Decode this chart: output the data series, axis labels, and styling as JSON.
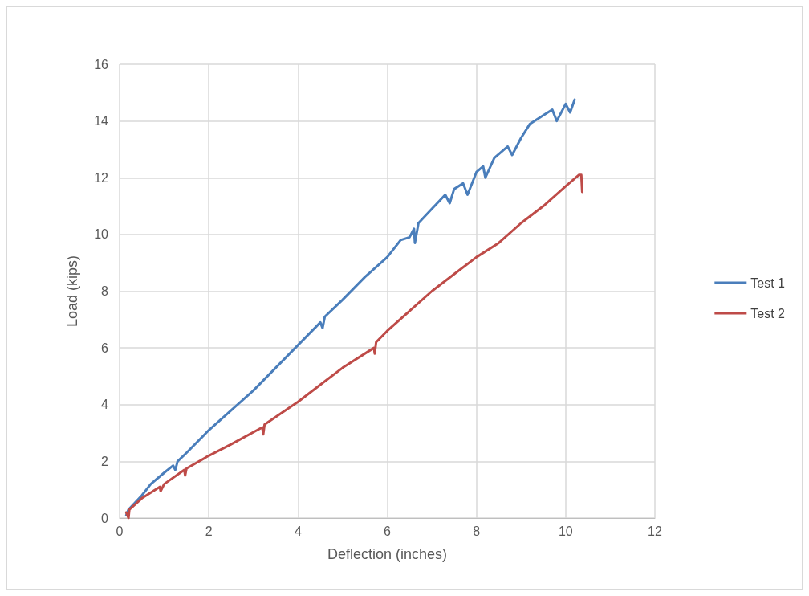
{
  "chart_data": {
    "type": "line",
    "xlabel": "Deflection (inches)",
    "ylabel": "Load (kips)",
    "xlim": [
      0,
      12
    ],
    "xticks": [
      0,
      2,
      4,
      6,
      8,
      10,
      12
    ],
    "ylim": [
      0,
      16
    ],
    "yticks": [
      0,
      2,
      4,
      6,
      8,
      10,
      12,
      14,
      16
    ],
    "grid": true,
    "legend": "right",
    "marker": "none",
    "line_style": "solid",
    "series": [
      {
        "name": "Test 1",
        "color": "#4a7ebb",
        "x": [
          0.15,
          0.2,
          0.5,
          0.7,
          1.0,
          1.2,
          1.25,
          1.3,
          1.5,
          2.0,
          2.5,
          3.0,
          3.5,
          4.0,
          4.5,
          4.55,
          4.6,
          5.0,
          5.5,
          6.0,
          6.3,
          6.5,
          6.6,
          6.62,
          6.7,
          7.0,
          7.3,
          7.4,
          7.5,
          7.7,
          7.8,
          8.0,
          8.15,
          8.2,
          8.4,
          8.7,
          8.8,
          9.0,
          9.2,
          9.5,
          9.7,
          9.8,
          10.0,
          10.1,
          10.2
        ],
        "values": [
          0.1,
          0.3,
          0.8,
          1.2,
          1.6,
          1.85,
          1.7,
          2.0,
          2.3,
          3.1,
          3.8,
          4.5,
          5.3,
          6.1,
          6.9,
          6.7,
          7.1,
          7.7,
          8.5,
          9.2,
          9.8,
          9.9,
          10.2,
          9.7,
          10.4,
          10.9,
          11.4,
          11.1,
          11.6,
          11.8,
          11.4,
          12.2,
          12.4,
          12.0,
          12.7,
          13.1,
          12.8,
          13.4,
          13.9,
          14.2,
          14.4,
          14.0,
          14.6,
          14.3,
          14.75
        ]
      },
      {
        "name": "Test 2",
        "color": "#be4b48",
        "x": [
          0.15,
          0.2,
          0.22,
          0.5,
          0.9,
          0.92,
          1.0,
          1.45,
          1.47,
          1.5,
          2,
          2.5,
          3.2,
          3.22,
          3.25,
          4,
          4.5,
          5,
          5.7,
          5.72,
          5.75,
          6,
          6.5,
          7,
          7.5,
          8,
          8.5,
          9,
          9.5,
          10,
          10.3,
          10.35,
          10.37
        ],
        "values": [
          0.2,
          0.0,
          0.3,
          0.7,
          1.1,
          0.95,
          1.2,
          1.7,
          1.5,
          1.75,
          2.2,
          2.6,
          3.2,
          2.95,
          3.3,
          4.1,
          4.7,
          5.3,
          6.0,
          5.8,
          6.2,
          6.6,
          7.3,
          8.0,
          8.6,
          9.2,
          9.7,
          10.4,
          11.0,
          11.7,
          12.1,
          12.1,
          11.5
        ]
      }
    ]
  }
}
